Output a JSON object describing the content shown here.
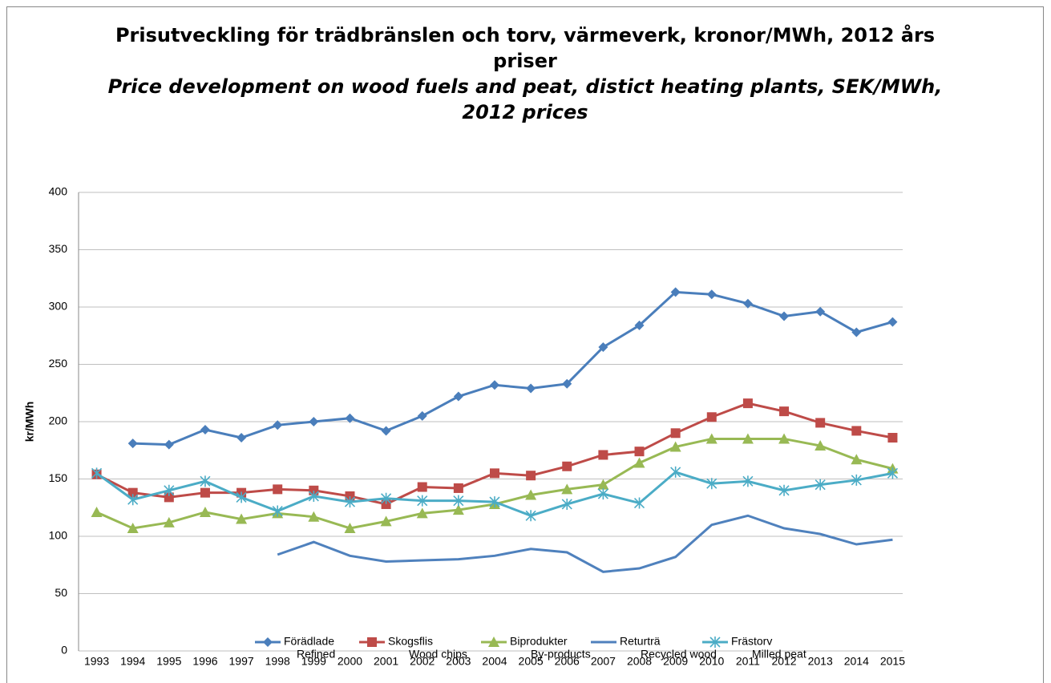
{
  "chart_data": {
    "type": "line",
    "title": "Prisutveckling för trädbränslen och torv, värmeverk, kronor/MWh, 2012 års priser",
    "subtitle": "Price development on wood fuels and peat, distict heating plants, SEK/MWh, 2012 prices",
    "y_label": "kr/MWh",
    "categories": [
      "1993",
      "1994",
      "1995",
      "1996",
      "1997",
      "1998",
      "1999",
      "2000",
      "2001",
      "2002",
      "2003",
      "2004",
      "2005",
      "2006",
      "2007",
      "2008",
      "2009",
      "2010",
      "2011",
      "2012",
      "2013",
      "2014",
      "2015"
    ],
    "ylim": [
      0,
      400
    ],
    "yticks": [
      0,
      50,
      100,
      150,
      200,
      250,
      300,
      350,
      400
    ],
    "grid": true,
    "legend": "bottom",
    "series": [
      {
        "name": "Förädlade",
        "label_en": "Refined",
        "color": "#4a7ebb",
        "marker": "diamond",
        "values": [
          null,
          181,
          180,
          193,
          186,
          197,
          200,
          203,
          192,
          205,
          222,
          232,
          229,
          233,
          265,
          284,
          313,
          311,
          303,
          292,
          296,
          278,
          287
        ]
      },
      {
        "name": "Skogsflis",
        "label_en": "Wood chips",
        "color": "#be4b48",
        "marker": "square",
        "values": [
          154,
          138,
          134,
          138,
          138,
          141,
          140,
          135,
          128,
          143,
          142,
          155,
          153,
          161,
          171,
          174,
          190,
          204,
          216,
          209,
          199,
          192,
          186
        ]
      },
      {
        "name": "Biprodukter",
        "label_en": "By-products",
        "color": "#98b954",
        "marker": "triangle",
        "values": [
          121,
          107,
          112,
          121,
          115,
          120,
          117,
          107,
          113,
          120,
          123,
          128,
          136,
          141,
          145,
          164,
          178,
          185,
          185,
          185,
          179,
          167,
          159
        ]
      },
      {
        "name": "Returträ",
        "label_en": "Recycled wood",
        "color": "#4f81bd",
        "marker": "none",
        "values": [
          null,
          null,
          null,
          null,
          null,
          84,
          95,
          83,
          78,
          79,
          80,
          83,
          89,
          86,
          69,
          72,
          82,
          110,
          118,
          107,
          102,
          93,
          97
        ]
      },
      {
        "name": "Frästorv",
        "label_en": "Milled peat",
        "color": "#4bacc6",
        "marker": "star",
        "values": [
          155,
          132,
          140,
          148,
          134,
          122,
          135,
          130,
          133,
          131,
          131,
          130,
          118,
          128,
          137,
          129,
          156,
          146,
          148,
          140,
          145,
          149,
          155
        ]
      }
    ]
  }
}
